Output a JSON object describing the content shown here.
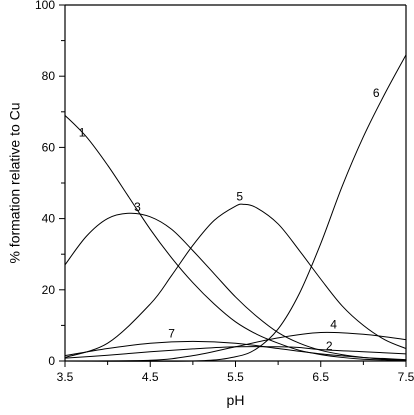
{
  "chart_data": {
    "type": "line",
    "title": "",
    "xlabel": "pH",
    "ylabel": "% formation relative to Cu",
    "xlim": [
      3.5,
      7.5
    ],
    "ylim": [
      0,
      100
    ],
    "x_ticks": [
      3.5,
      4.5,
      5.5,
      6.5,
      7.5
    ],
    "x_tick_labels": [
      "3.5",
      "4.5",
      "5.5",
      "6.5",
      "7.5"
    ],
    "y_ticks": [
      0,
      20,
      40,
      60,
      80,
      100
    ],
    "y_tick_labels": [
      "0",
      "20",
      "40",
      "60",
      "80",
      "100"
    ],
    "grid": false,
    "legend": "none",
    "line_color": "#000000",
    "series": [
      {
        "name": "1",
        "label_at": [
          3.7,
          64
        ],
        "points": [
          [
            3.5,
            69
          ],
          [
            3.75,
            63
          ],
          [
            4.0,
            55
          ],
          [
            4.25,
            46
          ],
          [
            4.5,
            37
          ],
          [
            4.75,
            29
          ],
          [
            5.0,
            22
          ],
          [
            5.25,
            16
          ],
          [
            5.5,
            11
          ],
          [
            5.75,
            7.5
          ],
          [
            6.0,
            5
          ],
          [
            6.25,
            3
          ],
          [
            6.5,
            1.8
          ],
          [
            6.75,
            1
          ],
          [
            7.0,
            0.5
          ],
          [
            7.25,
            0.3
          ],
          [
            7.5,
            0.1
          ]
        ]
      },
      {
        "name": "2",
        "label_at": [
          6.6,
          4
        ],
        "points": [
          [
            3.5,
            0.8
          ],
          [
            4.0,
            1.6
          ],
          [
            4.5,
            2.6
          ],
          [
            5.0,
            3.4
          ],
          [
            5.5,
            4.0
          ],
          [
            6.0,
            4.0
          ],
          [
            6.25,
            3.8
          ],
          [
            6.5,
            3.2
          ],
          [
            7.0,
            2.6
          ],
          [
            7.5,
            2.0
          ]
        ]
      },
      {
        "name": "3",
        "label_at": [
          4.35,
          43
        ],
        "points": [
          [
            3.5,
            27
          ],
          [
            3.75,
            35
          ],
          [
            4.0,
            40
          ],
          [
            4.25,
            41.5
          ],
          [
            4.5,
            40.5
          ],
          [
            4.75,
            37
          ],
          [
            5.0,
            31
          ],
          [
            5.25,
            24.5
          ],
          [
            5.5,
            18
          ],
          [
            5.75,
            12.5
          ],
          [
            6.0,
            8
          ],
          [
            6.25,
            5
          ],
          [
            6.5,
            3
          ],
          [
            6.75,
            1.8
          ],
          [
            7.0,
            1
          ],
          [
            7.25,
            0.5
          ],
          [
            7.5,
            0.2
          ]
        ]
      },
      {
        "name": "4",
        "label_at": [
          6.65,
          10
        ],
        "points": [
          [
            3.5,
            0
          ],
          [
            4.5,
            0.2
          ],
          [
            5.0,
            1.5
          ],
          [
            5.5,
            4
          ],
          [
            6.0,
            6.5
          ],
          [
            6.5,
            8
          ],
          [
            7.0,
            7.5
          ],
          [
            7.5,
            6
          ]
        ]
      },
      {
        "name": "5",
        "label_at": [
          5.55,
          46
        ],
        "points": [
          [
            3.5,
            1
          ],
          [
            4.0,
            5
          ],
          [
            4.5,
            16
          ],
          [
            4.75,
            24
          ],
          [
            5.0,
            32.5
          ],
          [
            5.25,
            39.5
          ],
          [
            5.5,
            43.5
          ],
          [
            5.6,
            44
          ],
          [
            5.75,
            43
          ],
          [
            6.0,
            38.5
          ],
          [
            6.25,
            31
          ],
          [
            6.5,
            23
          ],
          [
            6.75,
            15.5
          ],
          [
            7.0,
            10
          ],
          [
            7.25,
            6
          ],
          [
            7.5,
            3.5
          ]
        ]
      },
      {
        "name": "6",
        "label_at": [
          7.15,
          75
        ],
        "points": [
          [
            3.5,
            0
          ],
          [
            5.0,
            0
          ],
          [
            5.5,
            1.2
          ],
          [
            5.75,
            3.5
          ],
          [
            6.0,
            9
          ],
          [
            6.25,
            19
          ],
          [
            6.5,
            33
          ],
          [
            6.75,
            49
          ],
          [
            7.0,
            63
          ],
          [
            7.25,
            75
          ],
          [
            7.5,
            86
          ]
        ]
      },
      {
        "name": "7",
        "label_at": [
          4.75,
          7.5
        ],
        "points": [
          [
            3.5,
            1.5
          ],
          [
            4.0,
            3.5
          ],
          [
            4.5,
            5
          ],
          [
            5.0,
            5.5
          ],
          [
            5.5,
            5
          ],
          [
            6.0,
            3.5
          ],
          [
            6.5,
            2
          ],
          [
            7.0,
            1
          ],
          [
            7.5,
            0.4
          ]
        ]
      }
    ]
  }
}
